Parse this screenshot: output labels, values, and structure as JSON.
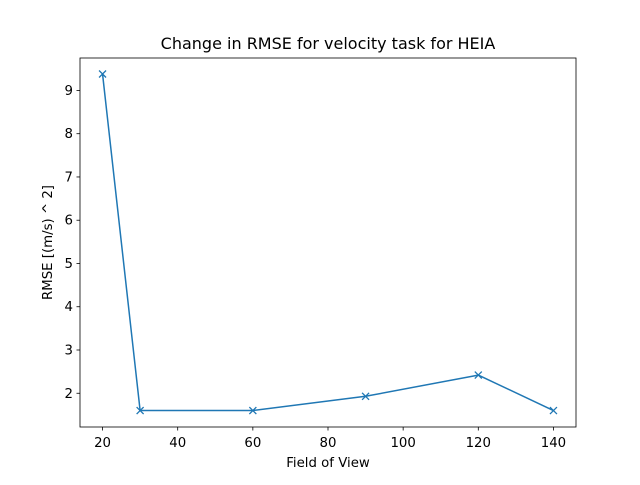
{
  "chart_data": {
    "type": "line",
    "title": "Change in RMSE for velocity task for HEIA",
    "xlabel": "Field of View",
    "ylabel": "RMSE [(m/s) ^ 2]",
    "xlim": [
      14,
      146
    ],
    "ylim": [
      1.22,
      9.75
    ],
    "xticks": [
      20,
      40,
      60,
      80,
      100,
      120,
      140
    ],
    "yticks": [
      2,
      3,
      4,
      5,
      6,
      7,
      8,
      9
    ],
    "grid": false,
    "marker": "x",
    "series": [
      {
        "color": "#1f77b4",
        "x": [
          20,
          30,
          60,
          90,
          120,
          140
        ],
        "y": [
          9.38,
          1.6,
          1.6,
          1.93,
          2.42,
          1.6
        ]
      }
    ]
  }
}
